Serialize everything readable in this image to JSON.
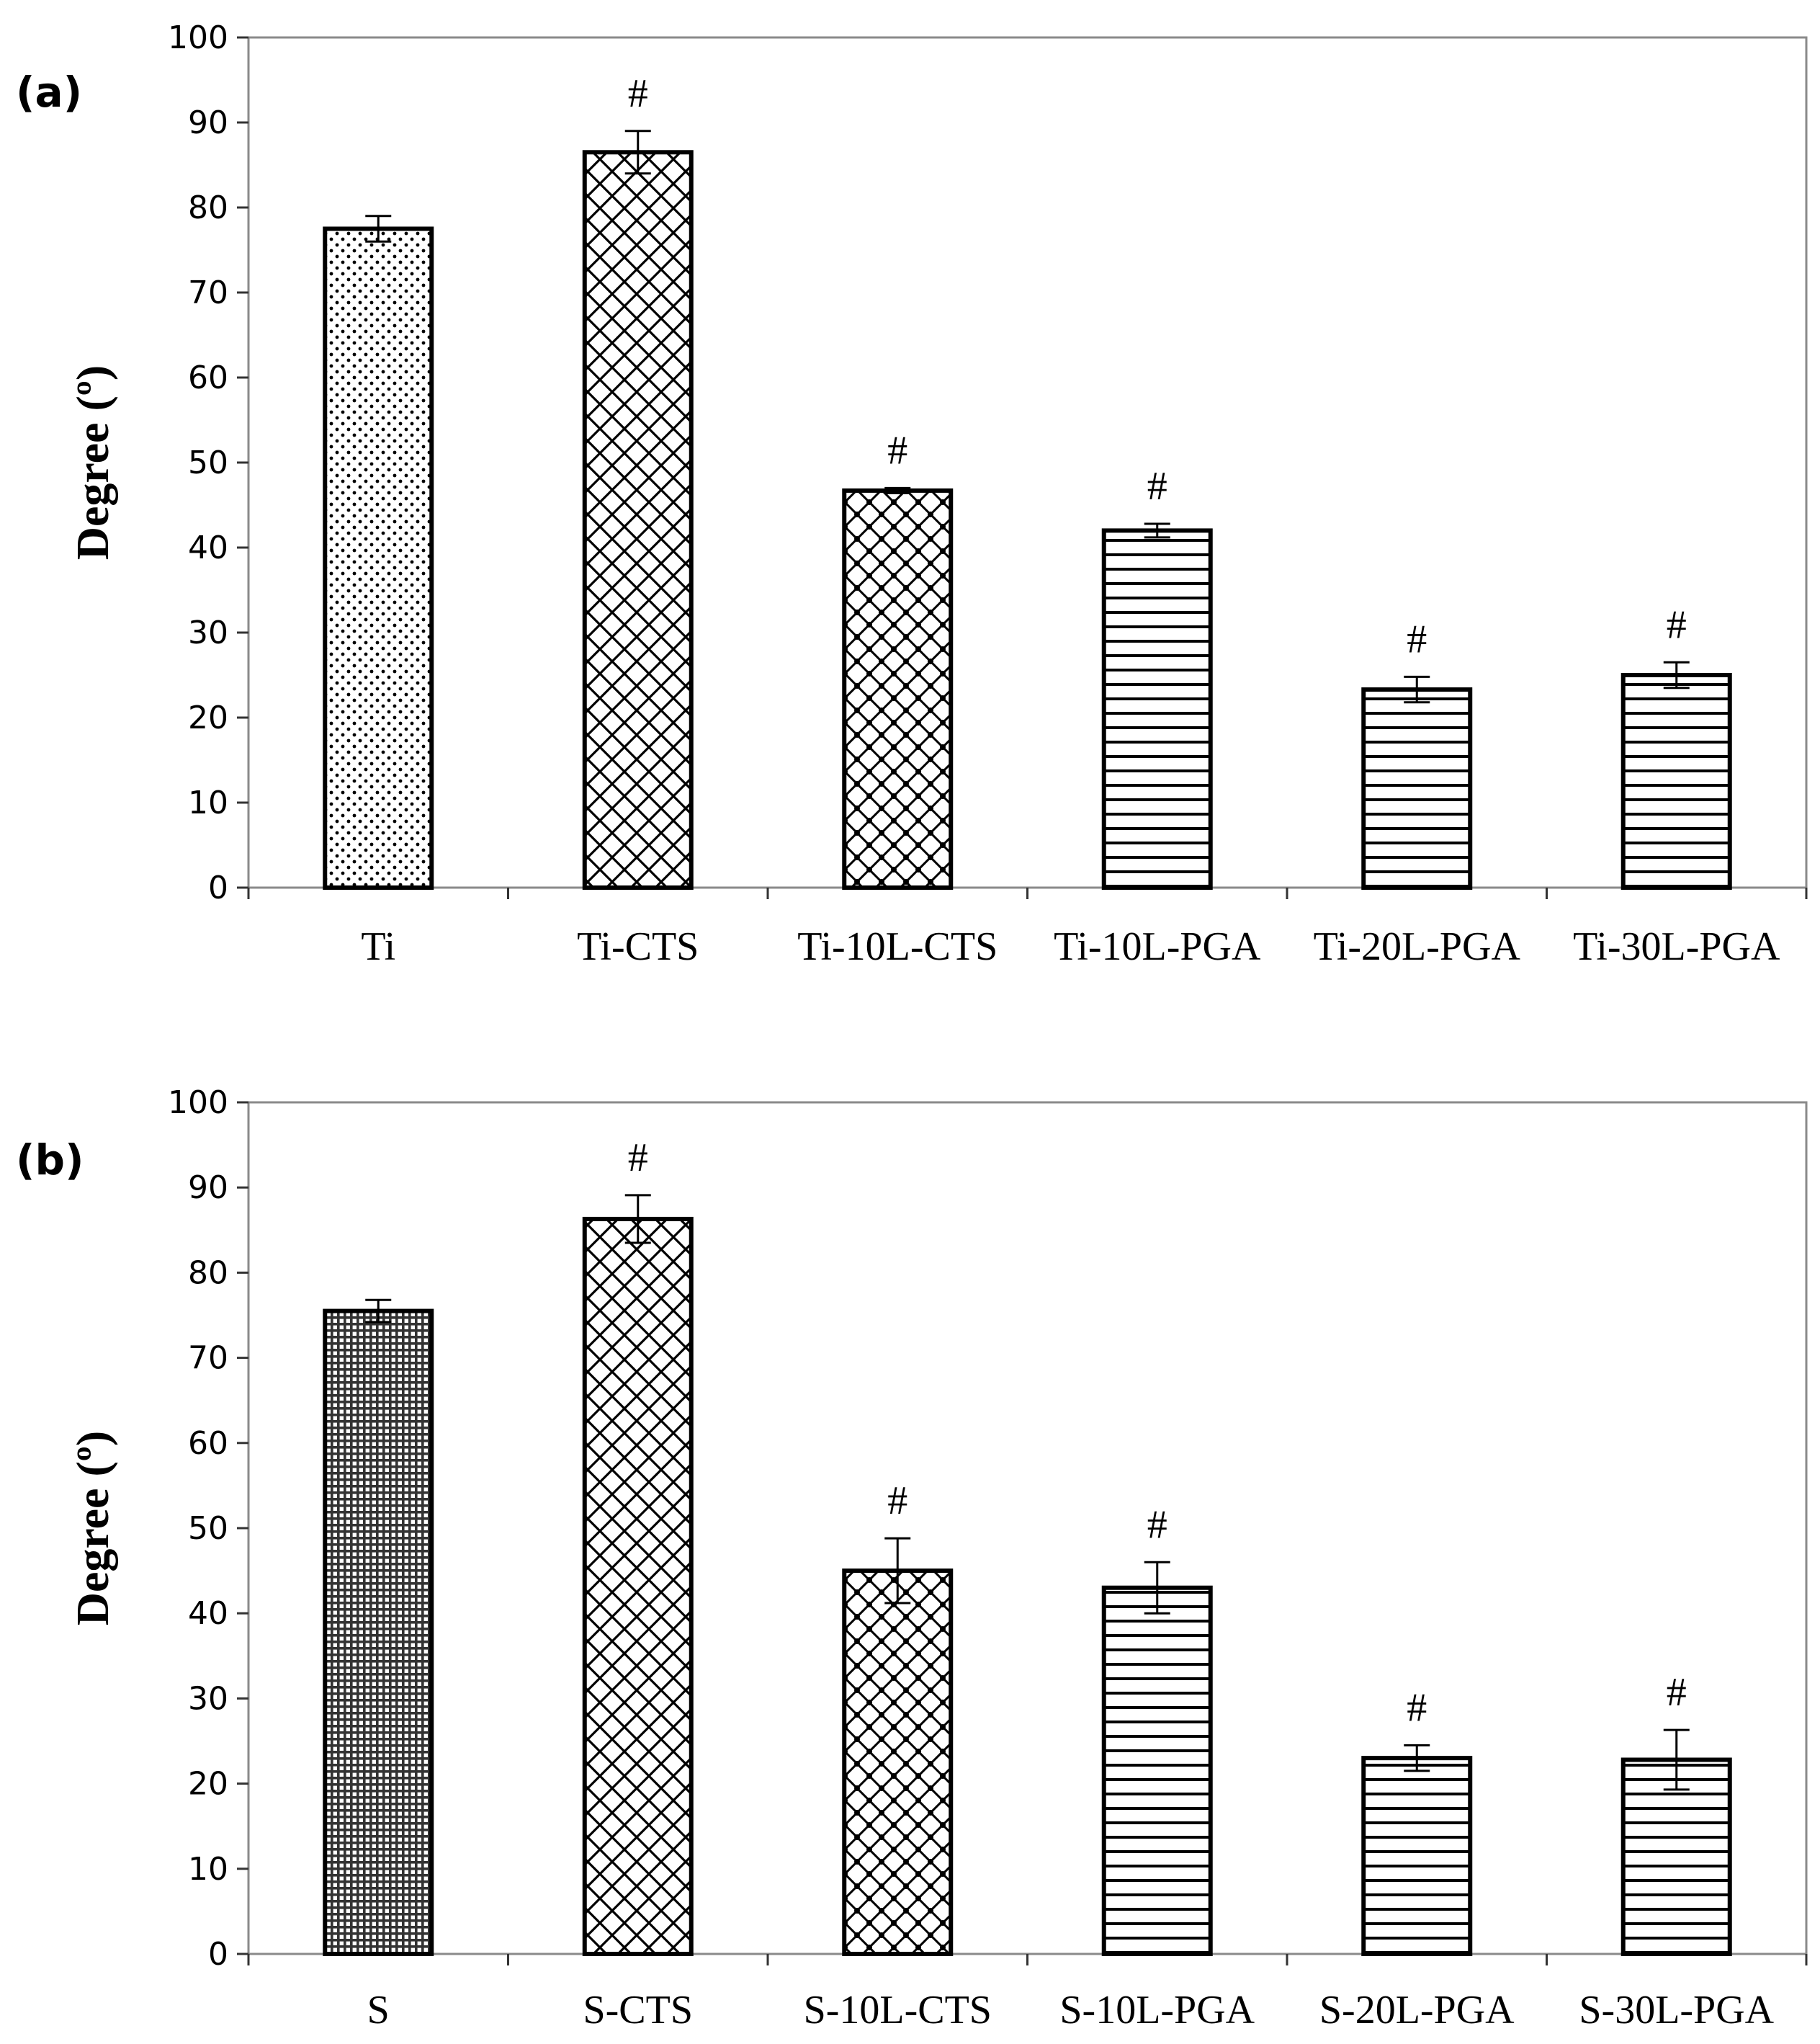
{
  "chart_data": [
    {
      "panel_label": "(a)",
      "type": "bar",
      "ylabel": "Degree (º)",
      "ylim": [
        0,
        100
      ],
      "yticks": [
        "0",
        "10",
        "20",
        "30",
        "40",
        "50",
        "60",
        "70",
        "80",
        "90",
        "100"
      ],
      "categories": [
        "Ti",
        "Ti-CTS",
        "Ti-10L-CTS",
        "Ti-10L-PGA",
        "Ti-20L-PGA",
        "Ti-30L-PGA"
      ],
      "values": [
        77.5,
        86.5,
        46.7,
        42.0,
        23.3,
        25.0
      ],
      "errors": [
        1.5,
        2.5,
        0.3,
        0.8,
        1.5,
        1.5
      ],
      "patterns": [
        "dots",
        "crosshatch",
        "crosshatch-dots",
        "hlines",
        "hlines",
        "hlines"
      ],
      "significance": [
        "",
        "#",
        "#",
        "#",
        "#",
        "#"
      ]
    },
    {
      "panel_label": "(b)",
      "type": "bar",
      "ylabel": "Degree (º)",
      "ylim": [
        0,
        100
      ],
      "yticks": [
        "0",
        "10",
        "20",
        "30",
        "40",
        "50",
        "60",
        "70",
        "80",
        "90",
        "100"
      ],
      "categories": [
        "S",
        "S-CTS",
        "S-10L-CTS",
        "S-10L-PGA",
        "S-20L-PGA",
        "S-30L-PGA"
      ],
      "values": [
        75.5,
        86.3,
        45.0,
        43.0,
        23.0,
        22.8
      ],
      "errors": [
        1.3,
        2.8,
        3.8,
        3.0,
        1.5,
        3.5
      ],
      "patterns": [
        "dense-grid",
        "crosshatch",
        "crosshatch-dots",
        "hlines",
        "hlines",
        "hlines"
      ],
      "significance": [
        "",
        "#",
        "#",
        "#",
        "#",
        "#"
      ]
    }
  ]
}
